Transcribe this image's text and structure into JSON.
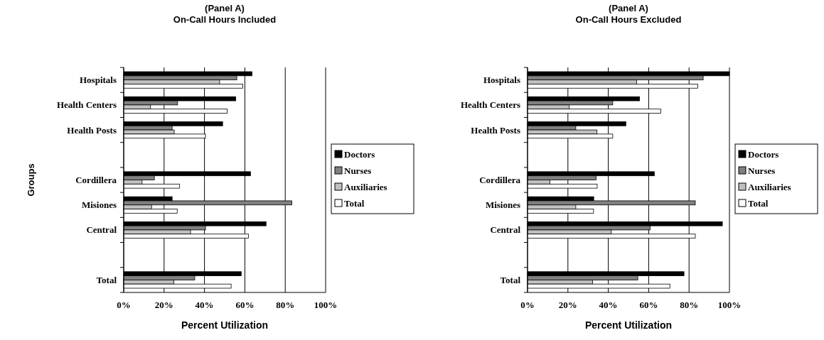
{
  "chart_data": [
    {
      "type": "bar",
      "orientation": "horizontal",
      "title": "(Panel A)\nOn-Call Hours Included",
      "xlabel": "Percent Utilization",
      "ylabel": "Groups",
      "categories": [
        "Hospitals",
        "Health Centers",
        "Health Posts",
        null,
        "Cordillera",
        "Misiones",
        "Central",
        null,
        "Total"
      ],
      "series": [
        {
          "name": "Doctors",
          "color": "#000000",
          "values": [
            63.5,
            55.5,
            49,
            null,
            62.8,
            24,
            70.5,
            null,
            58.2
          ]
        },
        {
          "name": "Nurses",
          "color": "#808080",
          "values": [
            56,
            26.7,
            24,
            null,
            15.2,
            83.3,
            40.5,
            null,
            35.2
          ]
        },
        {
          "name": "Auxiliaries",
          "color": "#c0c0c0",
          "values": [
            47.5,
            13.3,
            25,
            null,
            9.1,
            13.8,
            33.1,
            null,
            24.8
          ]
        },
        {
          "name": "Total",
          "color": "#ffffff",
          "values": [
            59,
            51.3,
            40.5,
            null,
            27.6,
            26.5,
            61.8,
            null,
            53.2
          ]
        }
      ],
      "xlim": [
        0,
        100
      ],
      "xticks": [
        {
          "value": 0,
          "label": "0%"
        },
        {
          "value": 20,
          "label": "20%"
        },
        {
          "value": 40,
          "label": "40%"
        },
        {
          "value": 60,
          "label": "60%"
        },
        {
          "value": 80,
          "label": "80%"
        },
        {
          "value": 100,
          "label": "100%"
        }
      ],
      "grid": "x",
      "legend": "right"
    },
    {
      "type": "bar",
      "orientation": "horizontal",
      "title": "(Panel A)\nOn-Call Hours Excluded",
      "xlabel": "Percent Utilization",
      "categories": [
        "Hospitals",
        "Health Centers",
        "Health Posts",
        null,
        "Cordillera",
        "Misiones",
        "Central",
        null,
        "Total"
      ],
      "series": [
        {
          "name": "Doctors",
          "color": "#000000",
          "values": [
            100,
            55.5,
            48.7,
            null,
            62.8,
            32.8,
            96.5,
            null,
            77.5
          ]
        },
        {
          "name": "Nurses",
          "color": "#808080",
          "values": [
            87,
            42.2,
            23.9,
            null,
            34,
            83.1,
            60.7,
            null,
            54.6
          ]
        },
        {
          "name": "Auxiliaries",
          "color": "#c0c0c0",
          "values": [
            54,
            20.7,
            34.4,
            null,
            11.1,
            23.9,
            41.5,
            null,
            32.2
          ]
        },
        {
          "name": "Total",
          "color": "#ffffff",
          "values": [
            84.3,
            66,
            42.2,
            null,
            34.5,
            32.7,
            83.1,
            null,
            70.5
          ]
        }
      ],
      "xlim": [
        0,
        100
      ],
      "xticks": [
        {
          "value": 0,
          "label": "0%"
        },
        {
          "value": 20,
          "label": "20%"
        },
        {
          "value": 40,
          "label": "40%"
        },
        {
          "value": 60,
          "label": "60%"
        },
        {
          "value": 80,
          "label": "80%"
        },
        {
          "value": 100,
          "label": "100%"
        }
      ],
      "grid": "x",
      "legend": "right"
    }
  ]
}
